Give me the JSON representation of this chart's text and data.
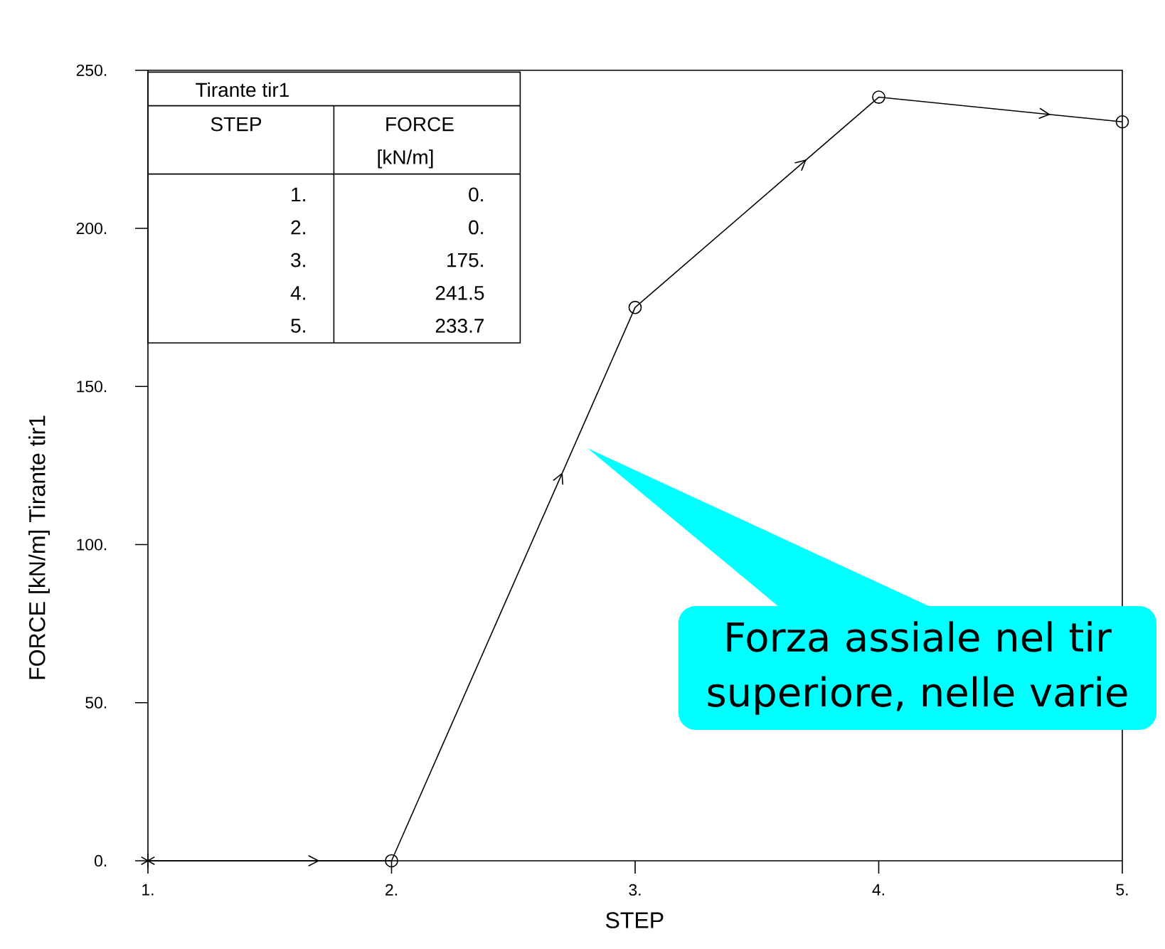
{
  "chart_data": {
    "type": "line",
    "xlabel": "STEP",
    "ylabel": "FORCE [kN/m] Tirante tir1",
    "annotations": [
      "Tirante tir1",
      "STEP",
      "FORCE",
      "[kN/m]",
      "0.",
      "0.",
      "175.",
      "241.5",
      "233.7",
      "Forza assiale nel tir superiore, nelle varie"
    ],
    "x": [
      1,
      2,
      3,
      4,
      5
    ],
    "series": [
      {
        "color": "#000000",
        "values": [
          0,
          0,
          175,
          241.5,
          233.7
        ],
        "marker": "none",
        "line_style": "solid"
      },
      {
        "type": "scatter",
        "color": "#000000",
        "x": [
          2,
          3,
          4,
          5
        ],
        "values": [
          0,
          175,
          241.5,
          233.7
        ],
        "marker": "circle"
      },
      {
        "type": "scatter",
        "color": "#000000",
        "x": [
          1
        ],
        "values": [
          0
        ],
        "marker": "cross"
      }
    ],
    "xlim": [
      1,
      5
    ],
    "ylim": [
      0,
      250
    ],
    "xticks": [
      {
        "value": 1,
        "label": "1."
      },
      {
        "value": 2,
        "label": "2."
      },
      {
        "value": 3,
        "label": "3."
      },
      {
        "value": 4,
        "label": "4."
      },
      {
        "value": 5,
        "label": "5."
      }
    ],
    "yticks": [
      {
        "value": 0,
        "label": "0."
      },
      {
        "value": 50,
        "label": "50."
      },
      {
        "value": 100,
        "label": "100."
      },
      {
        "value": 150,
        "label": "150."
      },
      {
        "value": 200,
        "label": "200."
      },
      {
        "value": 250,
        "label": "250."
      }
    ]
  }
}
